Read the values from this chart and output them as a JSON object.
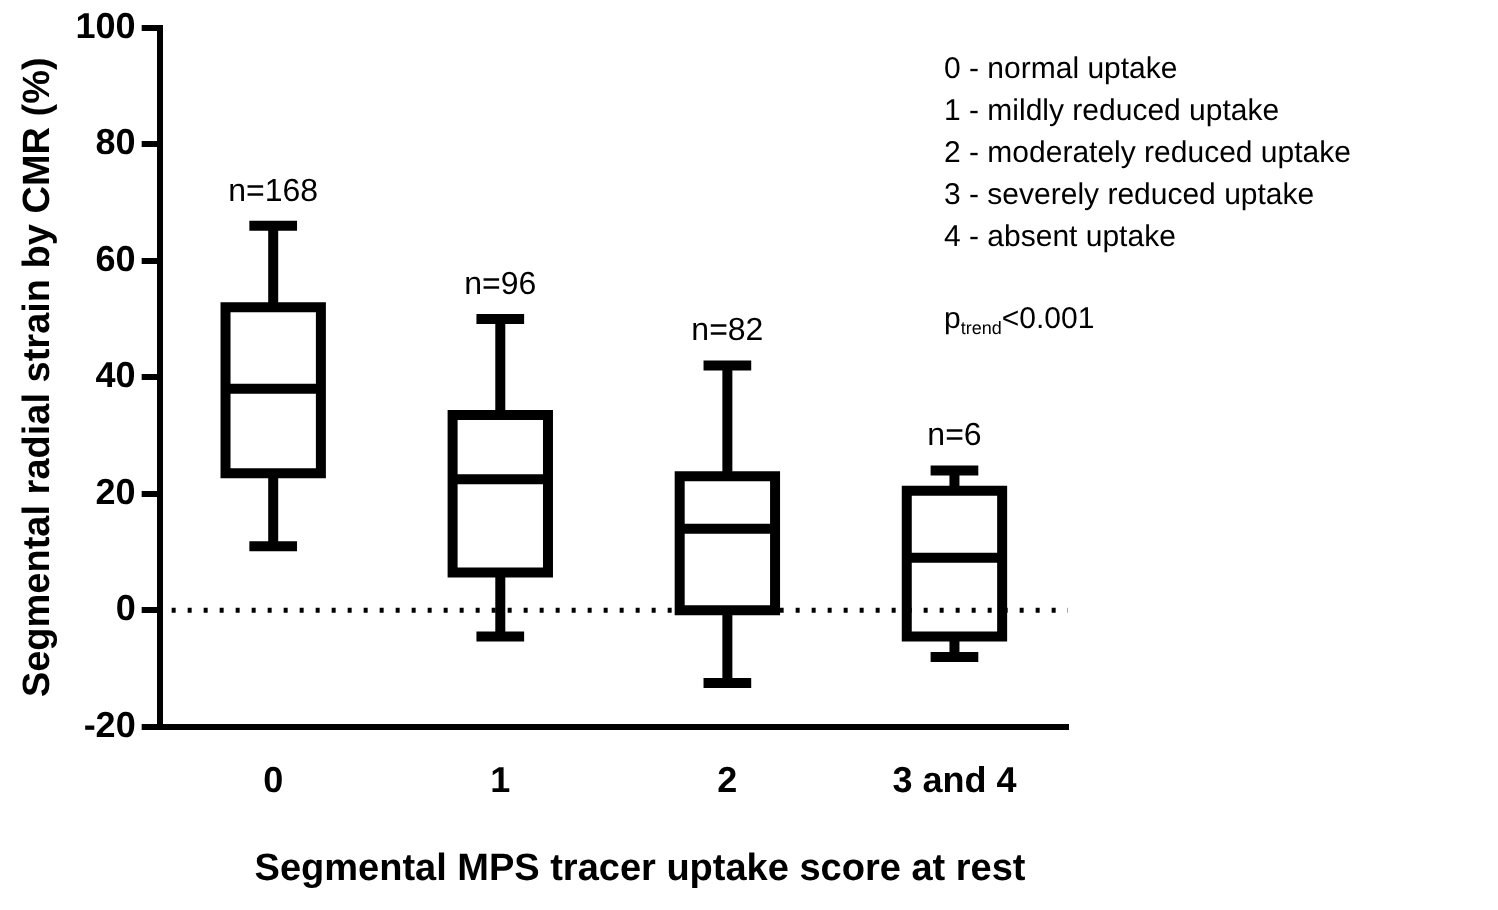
{
  "chart_data": {
    "type": "box",
    "xlabel": "Segmental MPS tracer uptake score at rest",
    "ylabel": "Segmental radial strain by CMR (%)",
    "categories": [
      "0",
      "1",
      "2",
      "3 and 4"
    ],
    "ylim": [
      -20,
      100
    ],
    "yticks": [
      -20,
      0,
      20,
      40,
      60,
      80,
      100
    ],
    "grid": false,
    "series": [
      {
        "color": "#000000",
        "boxes": [
          {
            "low": 11,
            "q1": 23.5,
            "median": 38,
            "q3": 52,
            "high": 66
          },
          {
            "low": -4.5,
            "q1": 6.5,
            "median": 22.5,
            "q3": 33.5,
            "high": 50
          },
          {
            "low": -12.5,
            "q1": 0,
            "median": 14,
            "q3": 23,
            "high": 42
          },
          {
            "low": -8,
            "q1": -4.5,
            "median": 9,
            "q3": 20.5,
            "high": 24
          }
        ]
      }
    ],
    "ref_lines": [
      {
        "axis": "y",
        "value": 0,
        "line_style": "dotted",
        "color": "#000000"
      }
    ],
    "annotations": [
      {
        "text": "n=168",
        "x": "0",
        "y": 66
      },
      {
        "text": "n=96",
        "x": "1",
        "y": 50
      },
      {
        "text": "n=82",
        "x": "2",
        "y": 42
      },
      {
        "text": "n=6",
        "x": "3 and 4",
        "y": 24
      },
      "0 - normal uptake",
      "1 - mildly reduced uptake",
      "2 - moderately reduced uptake",
      "3 - severely reduced uptake",
      "4 - absent uptake",
      "p$_{trend}$<0.001"
    ]
  }
}
